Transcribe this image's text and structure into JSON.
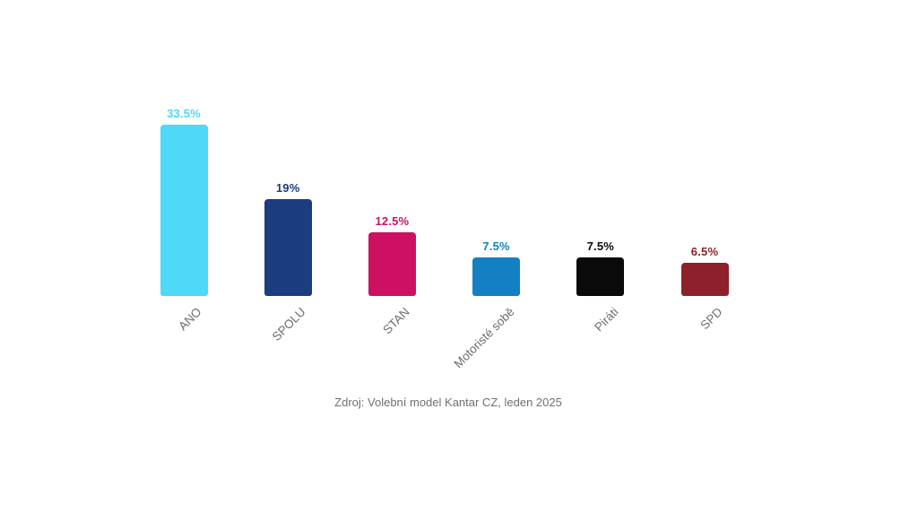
{
  "chart_data": {
    "type": "bar",
    "title": "",
    "xlabel": "",
    "ylabel": "",
    "ylim": [
      0,
      35
    ],
    "grid": false,
    "legend": "none",
    "categories": [
      "ANO",
      "SPOLU",
      "STAN",
      "Motoristé sobě",
      "Piráti",
      "SPD"
    ],
    "values": [
      33.5,
      19,
      12.5,
      7.5,
      7.5,
      6.5
    ],
    "value_labels": [
      "33.5%",
      "19%",
      "12.5%",
      "7.5%",
      "7.5%",
      "6.5%"
    ],
    "bar_colors": [
      "#4ED9F8",
      "#1B3D7E",
      "#CE1063",
      "#1480C4",
      "#0A0A0A",
      "#8E202B"
    ],
    "value_label_colors": [
      "#4ED9F8",
      "#1B3D7E",
      "#CE1063",
      "#1480C4",
      "#0A0A0A",
      "#8E202B"
    ]
  },
  "footer": {
    "source": "Zdroj: Volební model Kantar CZ, leden 2025"
  },
  "colors": {
    "background": "#ffffff",
    "category_label": "#6d6d72",
    "source_text": "#6e7076"
  }
}
